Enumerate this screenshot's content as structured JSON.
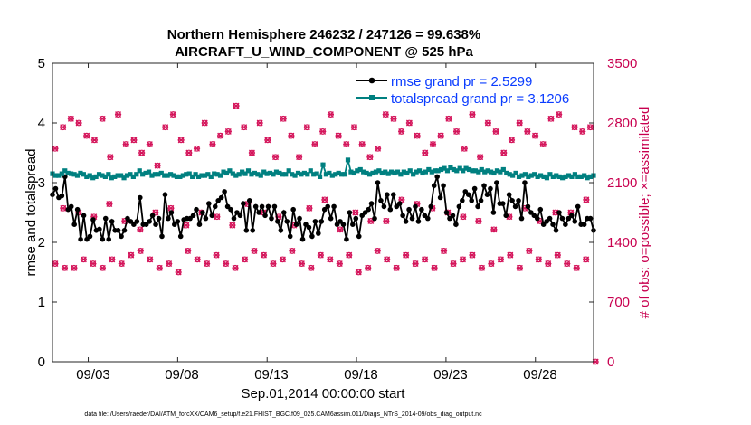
{
  "chart_data": {
    "type": "line",
    "title_line1": "Northern Hemisphere 246232 / 247126 = 99.638%",
    "title_line2": "AIRCRAFT_U_WIND_COMPONENT @ 525 hPa",
    "ylabel_left": "rmse and totalspread",
    "ylabel_right": "# of obs: o=possible; ×=assimilated",
    "xlabel": "Sep.01,2014 00:00:00 start",
    "footnote": "data file: /Users/raeder/DAI/ATM_forcXX/CAM6_setup/f.e21.FHIST_BGC.f09_025.CAM6assim.011/Diags_NTrS_2014-09/obs_diag_output.nc",
    "xlim": [
      1.0,
      31.25
    ],
    "ylim_left": [
      0,
      5
    ],
    "ylim_right": [
      0,
      3500
    ],
    "x_tick_values": [
      3,
      8,
      13,
      18,
      23,
      28
    ],
    "x_tick_labels": [
      "09/03",
      "09/08",
      "09/13",
      "09/18",
      "09/23",
      "09/28"
    ],
    "y_left_ticks": [
      "0",
      "1",
      "2",
      "3",
      "4",
      "5"
    ],
    "y_right_ticks": [
      "0",
      "700",
      "1400",
      "2100",
      "2800",
      "3500"
    ],
    "colors": {
      "rmse": "#000000",
      "spread": "#008080",
      "obs": "#d4145a",
      "right_axis": "#c8004f",
      "legend_text": "#0a3cff"
    },
    "series": [
      {
        "name": "rmse grand pr = 2.5299",
        "values": [
          2.8,
          2.9,
          2.75,
          2.78,
          3.1,
          2.55,
          2.6,
          2.3,
          2.55,
          2.05,
          2.45,
          2.05,
          2.1,
          2.38,
          2.2,
          2.22,
          2.05,
          2.4,
          2.05,
          2.35,
          2.2,
          2.2,
          2.1,
          2.2,
          2.4,
          2.35,
          2.3,
          2.35,
          2.75,
          2.3,
          2.3,
          2.35,
          2.45,
          2.3,
          2.4,
          2.1,
          2.8,
          2.4,
          2.5,
          2.3,
          2.35,
          2.1,
          2.38,
          2.4,
          2.4,
          2.45,
          2.55,
          2.3,
          2.5,
          2.4,
          2.65,
          2.45,
          2.6,
          2.7,
          2.75,
          2.85,
          2.6,
          2.55,
          2.4,
          2.5,
          2.45,
          2.65,
          2.2,
          2.7,
          2.2,
          2.6,
          2.5,
          2.6,
          2.45,
          2.6,
          2.4,
          2.6,
          2.35,
          2.2,
          2.5,
          2.35,
          2.1,
          2.55,
          2.3,
          2.4,
          2.05,
          2.3,
          2.25,
          2.1,
          2.35,
          2.15,
          2.35,
          2.55,
          2.6,
          2.4,
          2.6,
          2.3,
          2.35,
          2.3,
          2.05,
          2.5,
          2.3,
          2.4,
          2.1,
          2.45,
          2.5,
          2.55,
          2.65,
          2.4,
          3.0,
          2.7,
          2.6,
          2.8,
          2.55,
          2.8,
          2.6,
          2.65,
          2.45,
          2.35,
          2.55,
          2.4,
          2.6,
          2.35,
          2.55,
          2.45,
          2.4,
          2.6,
          2.95,
          3.1,
          2.75,
          2.95,
          2.5,
          2.4,
          2.45,
          2.3,
          2.6,
          2.7,
          2.85,
          2.8,
          2.7,
          2.9,
          2.6,
          2.7,
          2.95,
          2.8,
          2.9,
          2.5,
          3.0,
          2.65,
          2.65,
          2.45,
          2.8,
          2.7,
          2.6,
          2.7,
          2.4,
          3.0,
          2.6,
          2.5,
          2.45,
          2.4,
          2.55,
          2.3,
          2.35,
          2.4,
          2.3,
          2.2,
          2.5,
          2.4,
          2.3,
          2.4,
          2.45,
          2.35,
          2.6,
          2.3,
          2.3,
          2.4,
          2.4,
          2.2
        ]
      },
      {
        "name": "totalspread grand pr = 3.1206",
        "values": [
          3.15,
          3.12,
          3.12,
          3.15,
          3.2,
          3.16,
          3.15,
          3.14,
          3.12,
          3.16,
          3.14,
          3.1,
          3.12,
          3.08,
          3.1,
          3.14,
          3.12,
          3.1,
          3.14,
          3.08,
          3.1,
          3.12,
          3.12,
          3.08,
          3.12,
          3.14,
          3.1,
          3.14,
          3.2,
          3.14,
          3.16,
          3.18,
          3.12,
          3.14,
          3.14,
          3.16,
          3.12,
          3.12,
          3.14,
          3.12,
          3.1,
          3.1,
          3.12,
          3.14,
          3.15,
          3.1,
          3.14,
          3.1,
          3.12,
          3.12,
          3.14,
          3.1,
          3.15,
          3.14,
          3.12,
          3.18,
          3.16,
          3.2,
          3.15,
          3.12,
          3.14,
          3.18,
          3.15,
          3.2,
          3.14,
          3.16,
          3.14,
          3.12,
          3.18,
          3.15,
          3.16,
          3.14,
          3.18,
          3.16,
          3.14,
          3.14,
          3.2,
          3.14,
          3.12,
          3.16,
          3.14,
          3.16,
          3.14,
          3.2,
          3.14,
          3.15,
          3.1,
          3.3,
          3.14,
          3.16,
          3.12,
          3.14,
          3.16,
          3.14,
          3.14,
          3.38,
          3.18,
          3.16,
          3.2,
          3.22,
          3.18,
          3.16,
          3.14,
          3.16,
          3.18,
          3.2,
          3.16,
          3.18,
          3.15,
          3.18,
          3.16,
          3.18,
          3.14,
          3.18,
          3.16,
          3.2,
          3.14,
          3.18,
          3.2,
          3.16,
          3.18,
          3.22,
          3.18,
          3.2,
          3.2,
          3.22,
          3.24,
          3.2,
          3.25,
          3.22,
          3.2,
          3.24,
          3.2,
          3.24,
          3.22,
          3.2,
          3.2,
          3.18,
          3.22,
          3.18,
          3.2,
          3.18,
          3.16,
          3.2,
          3.18,
          3.22,
          3.16,
          3.14,
          3.12,
          3.16,
          3.1,
          3.12,
          3.14,
          3.1,
          3.12,
          3.14,
          3.1,
          3.12,
          3.1,
          3.08,
          3.14,
          3.1,
          3.12,
          3.1,
          3.08,
          3.1,
          3.12,
          3.1,
          3.14,
          3.1,
          3.1,
          3.12,
          3.08,
          3.1,
          3.12
        ]
      }
    ],
    "obs_counts_high": [
      2500,
      2750,
      2850,
      2800,
      2650,
      2600,
      2850,
      2400,
      2900,
      2550,
      2600,
      2450,
      2550,
      2300,
      2750,
      2900,
      2600,
      2450,
      2500,
      2800,
      2550,
      2650,
      2700,
      3000,
      2750,
      2450,
      2800,
      2600,
      2400,
      2850,
      2650,
      2400,
      2750,
      2550,
      2700,
      2900,
      2650,
      2550,
      2750,
      2550,
      2400,
      2500,
      2900,
      2850,
      2700,
      2800,
      2650,
      2450,
      2550,
      2650,
      2850,
      2700,
      2500,
      2900,
      2400,
      2800,
      2700,
      2450,
      2600,
      2800,
      2700,
      2650,
      2550,
      2850,
      2900,
      3050,
      2750,
      2700,
      2750
    ],
    "obs_counts_low": [
      1150,
      1100,
      1100,
      1200,
      1150,
      1100,
      1200,
      1150,
      1250,
      1300,
      1200,
      1100,
      1150,
      1050,
      1300,
      1200,
      1150,
      1250,
      1150,
      1100,
      1200,
      1300,
      1250,
      1150,
      1200,
      1300,
      1150,
      1100,
      1250,
      1200,
      1150,
      1250,
      1050,
      1100,
      1300,
      1200,
      1100,
      1250,
      1150,
      1200,
      1100,
      1300,
      1150,
      1200,
      1250,
      1100,
      1150,
      1200,
      1250,
      1100,
      1300,
      1200,
      1150,
      1250,
      1150,
      1100,
      1200,
      0
    ],
    "obs_counts_mid": [
      1800,
      1750,
      1700,
      1850,
      1650,
      1550,
      1750,
      1800,
      1600,
      1750,
      1700,
      1600,
      1850,
      1750,
      1700,
      1600,
      1800,
      1900,
      1550,
      1750,
      1650,
      1650,
      1900,
      1850,
      1800,
      1750,
      1700,
      1650,
      1550,
      1700,
      1800,
      1650,
      1750,
      1750,
      1900
    ]
  }
}
